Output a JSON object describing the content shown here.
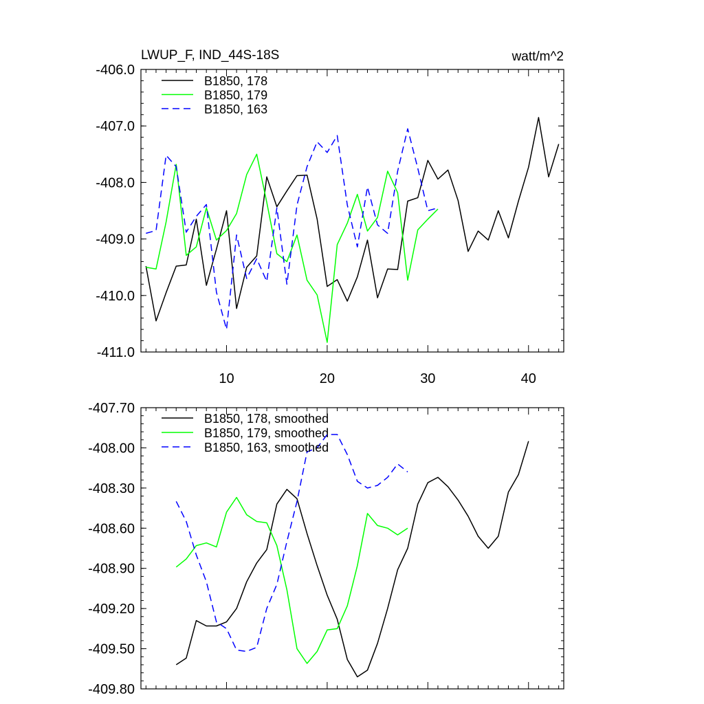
{
  "chart_data": [
    {
      "type": "line",
      "title": "LWUP_F, IND_44S-18S",
      "units": "watt/m^2",
      "xlim": [
        1.5,
        43.5
      ],
      "ylim": [
        -411.0,
        -406.0
      ],
      "xticks": [
        10,
        20,
        30,
        40
      ],
      "xtick_labels": [
        "10",
        "20",
        "30",
        "40"
      ],
      "yticks": [
        -406.0,
        -407.0,
        -408.0,
        -409.0,
        -410.0,
        -411.0
      ],
      "ytick_labels": [
        "-406.0",
        "-407.0",
        "-408.0",
        "-409.0",
        "-410.0",
        "-411.0"
      ],
      "series": [
        {
          "name": "B1850, 178",
          "color": "#000000",
          "dash": "solid",
          "x_start": 2,
          "values": [
            -409.48,
            -410.45,
            -409.95,
            -409.48,
            -409.46,
            -408.65,
            -409.82,
            -409.18,
            -408.5,
            -410.23,
            -409.5,
            -409.3,
            -407.9,
            -408.43,
            -408.15,
            -407.88,
            -407.87,
            -408.65,
            -409.84,
            -409.72,
            -410.1,
            -409.67,
            -409.02,
            -410.04,
            -409.53,
            -409.54,
            -408.33,
            -408.27,
            -407.61,
            -407.94,
            -407.78,
            -408.32,
            -409.22,
            -408.86,
            -409.02,
            -408.5,
            -408.98,
            -408.33,
            -407.73,
            -406.85,
            -407.9,
            -407.32
          ]
        },
        {
          "name": "B1850, 179",
          "color": "#00ff00",
          "dash": "solid",
          "x_start": 2,
          "values": [
            -409.5,
            -409.53,
            -408.7,
            -407.68,
            -409.29,
            -409.14,
            -408.45,
            -409.02,
            -408.85,
            -408.55,
            -407.86,
            -407.5,
            -408.35,
            -409.26,
            -409.4,
            -408.93,
            -409.73,
            -409.99,
            -410.83,
            -409.1,
            -408.72,
            -408.21,
            -408.86,
            -408.62,
            -407.8,
            -408.18,
            -409.73,
            -408.84,
            -408.65,
            -408.47
          ]
        },
        {
          "name": "B1850, 163",
          "color": "#0000ff",
          "dash": "dashed",
          "x_start": 2,
          "values": [
            -408.9,
            -408.85,
            -407.52,
            -407.72,
            -408.88,
            -408.6,
            -408.39,
            -409.94,
            -410.6,
            -408.93,
            -409.7,
            -409.35,
            -409.75,
            -408.45,
            -409.8,
            -408.4,
            -407.72,
            -407.28,
            -407.47,
            -407.17,
            -408.4,
            -409.14,
            -408.08,
            -408.75,
            -408.9,
            -407.8,
            -407.05,
            -407.75,
            -408.5,
            -408.45
          ]
        }
      ]
    },
    {
      "type": "line",
      "title": "",
      "xlim": [
        1.5,
        43.5
      ],
      "ylim": [
        -409.8,
        -407.7
      ],
      "xticks": [
        10,
        20,
        30,
        40
      ],
      "xtick_labels": [
        "",
        "",
        "",
        ""
      ],
      "yticks": [
        -407.7,
        -408.0,
        -408.3,
        -408.6,
        -408.9,
        -409.2,
        -409.5,
        -409.8
      ],
      "ytick_labels": [
        "-407.70",
        "-408.00",
        "-408.30",
        "-408.60",
        "-408.90",
        "-409.20",
        "-409.50",
        "-409.80"
      ],
      "series": [
        {
          "name": "B1850, 178, smoothed",
          "color": "#000000",
          "dash": "solid",
          "x_start": 5,
          "values": [
            -409.62,
            -409.57,
            -409.29,
            -409.33,
            -409.33,
            -409.3,
            -409.2,
            -409.0,
            -408.86,
            -408.76,
            -408.42,
            -408.31,
            -408.38,
            -408.64,
            -408.88,
            -409.1,
            -409.28,
            -409.58,
            -409.71,
            -409.66,
            -409.46,
            -409.2,
            -408.91,
            -408.75,
            -408.42,
            -408.26,
            -408.22,
            -408.29,
            -408.39,
            -408.51,
            -408.66,
            -408.75,
            -408.66,
            -408.33,
            -408.2,
            -407.95
          ]
        },
        {
          "name": "B1850, 179, smoothed",
          "color": "#00ff00",
          "dash": "solid",
          "x_start": 5,
          "values": [
            -408.89,
            -408.83,
            -408.73,
            -408.71,
            -408.74,
            -408.48,
            -408.37,
            -408.5,
            -408.55,
            -408.56,
            -408.73,
            -409.06,
            -409.5,
            -409.61,
            -409.52,
            -409.36,
            -409.35,
            -409.18,
            -408.88,
            -408.49,
            -408.58,
            -408.6,
            -408.65,
            -408.6
          ]
        },
        {
          "name": "B1850, 163, smoothed",
          "color": "#0000ff",
          "dash": "dashed",
          "x_start": 5,
          "values": [
            -408.4,
            -408.55,
            -408.8,
            -409.0,
            -409.3,
            -409.35,
            -409.51,
            -409.52,
            -409.49,
            -409.2,
            -409.02,
            -408.7,
            -408.4,
            -408.03,
            -408.0,
            -407.9,
            -407.9,
            -408.05,
            -408.25,
            -408.3,
            -408.28,
            -408.22,
            -408.12,
            -408.18
          ]
        }
      ]
    }
  ]
}
